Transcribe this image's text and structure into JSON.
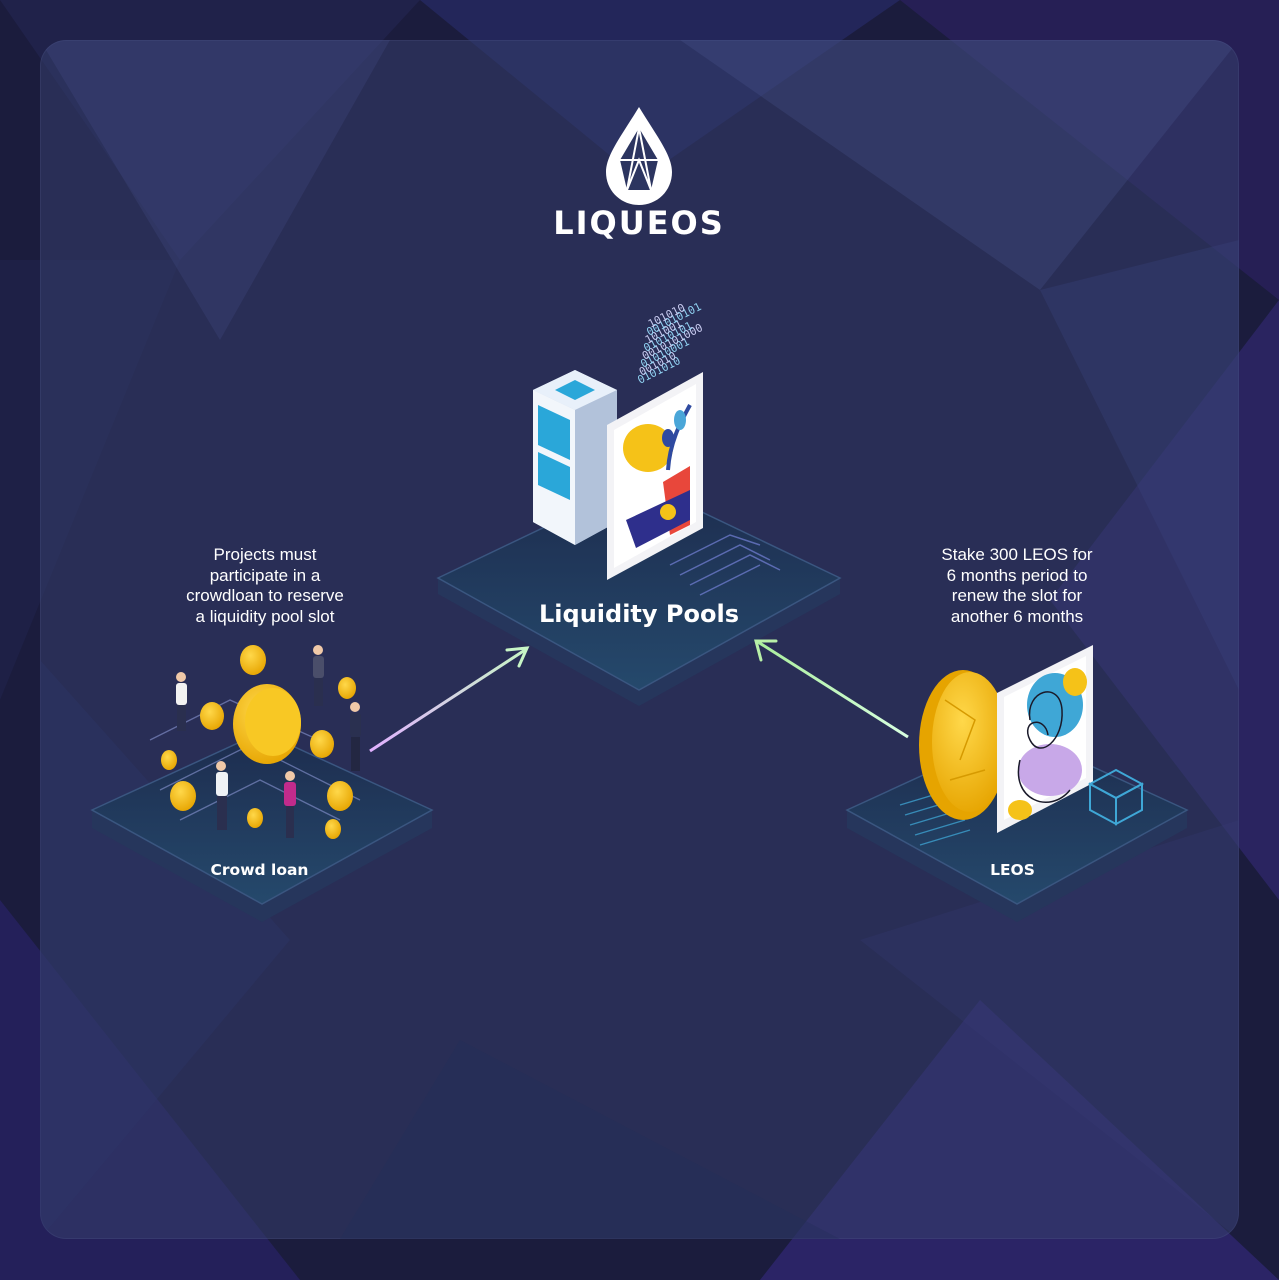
{
  "brand": {
    "name": "LIQUEOS",
    "logo_icon": "water-drop-gem-icon"
  },
  "nodes": {
    "center": {
      "label": "Liquidity Pools"
    },
    "left": {
      "label": "Crowd loan"
    },
    "right": {
      "label": "LEOS"
    }
  },
  "captions": {
    "left": [
      "Projects must",
      "participate in a",
      "crowdloan to reserve",
      "a liquidity pool slot"
    ],
    "right": [
      "Stake 300 LEOS for",
      "6 months period to",
      "renew the slot for",
      "another 6 months"
    ]
  },
  "binary_digits": [
    "0101010",
    "001010",
    "01010001",
    "0010101000",
    "01010101",
    "101001",
    "001010101",
    "101010"
  ],
  "colors": {
    "background": "#1b1c3d",
    "panel": "#343e6c",
    "platform_top": "#1f3355",
    "platform_side": "#27375e",
    "coin": "#f5c218",
    "arrow_left": "#e5b9ff",
    "arrow_right": "#c9f7c0",
    "accent_cyan": "#3fa7d6"
  }
}
